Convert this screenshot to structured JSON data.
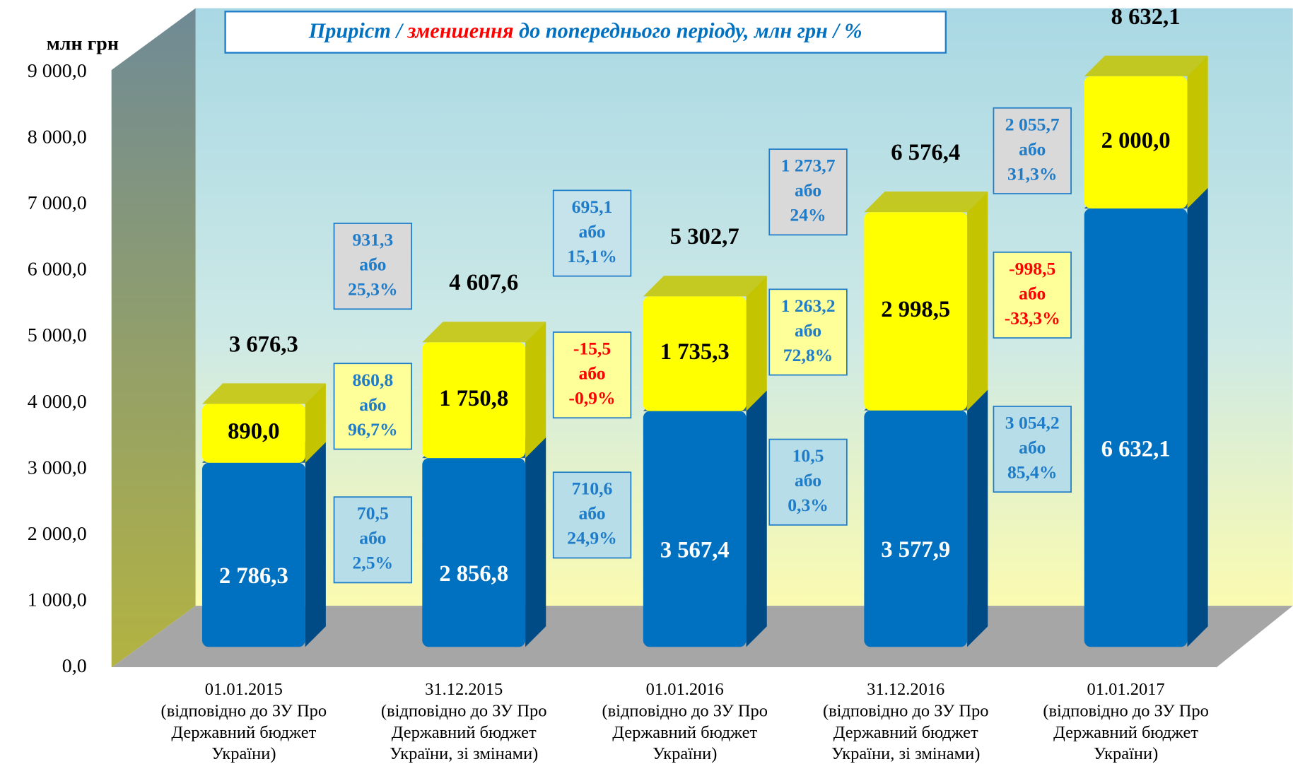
{
  "chart_data": {
    "type": "bar3d_stacked",
    "title_parts": [
      {
        "text": "Приріст / ",
        "color": "#0070c0"
      },
      {
        "text": "зменшення",
        "color": "#ff0000"
      },
      {
        "text": " до попереднього періоду, млн грн / %",
        "color": "#0070c0"
      }
    ],
    "y_axis_label": "млн грн",
    "categories": [
      "01.01.2015\n(відповідно до ЗУ Про\nДержавний бюджет\nУкраїни)",
      "31.12.2015\n(відповідно до ЗУ Про\nДержавний бюджет\nУкраїни, зі змінами)",
      "01.01.2016\n(відповідно до ЗУ Про\nДержавний бюджет\nУкраїни)",
      "31.12.2016\n(відповідно до ЗУ Про\nДержавний бюджет\nУкраїни, зі змінами)",
      "01.01.2017\n(відповідно до ЗУ Про\nДержавний бюджет\nУкраїни)"
    ],
    "series": [
      {
        "color": "#0070c0",
        "side_color": "#004a86",
        "label_color": "#ffffff",
        "values": [
          2786.3,
          2856.8,
          3567.4,
          3577.9,
          6632.1
        ],
        "value_labels": [
          "2 786,3",
          "2 856,8",
          "3 567,4",
          "3 577,9",
          "6 632,1"
        ]
      },
      {
        "color": "#ffff00",
        "side_color": "#c4c400",
        "label_color": "#000000",
        "values": [
          890.0,
          1750.8,
          1735.3,
          2998.5,
          2000.0
        ],
        "value_labels": [
          "890,0",
          "1 750,8",
          "1 735,3",
          "2 998,5",
          "2 000,0"
        ]
      }
    ],
    "totals": {
      "values": [
        3676.3,
        4607.6,
        5302.7,
        6576.4,
        8632.1
      ],
      "value_labels": [
        "3 676,3",
        "4 607,6",
        "5 302,7",
        "6 576,4",
        "8 632,1"
      ]
    },
    "changes": [
      {
        "total": {
          "lines": [
            "931,3",
            "або",
            "25,3%"
          ],
          "color": "#1f7cc8",
          "bg": "#d9d9d9"
        },
        "top": {
          "lines": [
            "860,8",
            "або",
            "96,7%"
          ],
          "color": "#1f7cc8",
          "bg": "#ffff99"
        },
        "bottom": {
          "lines": [
            "70,5",
            "або",
            "2,5%"
          ],
          "color": "#1f7cc8",
          "bg": "#b7dde8"
        }
      },
      {
        "total": {
          "lines": [
            "695,1",
            "або",
            "15,1%"
          ],
          "color": "#1f7cc8",
          "bg": "#c6e3ec"
        },
        "top": {
          "lines": [
            "-15,5",
            "або",
            "-0,9%"
          ],
          "color": "#ff0000",
          "bg": "#ffff99"
        },
        "bottom": {
          "lines": [
            "710,6",
            "або",
            "24,9%"
          ],
          "color": "#1f7cc8",
          "bg": "#b7dde8"
        }
      },
      {
        "total": {
          "lines": [
            "1 273,7",
            "або",
            "24%"
          ],
          "color": "#1f7cc8",
          "bg": "#d9d9d9"
        },
        "top": {
          "lines": [
            "1 263,2",
            "або",
            "72,8%"
          ],
          "color": "#1f7cc8",
          "bg": "#ffff99"
        },
        "bottom": {
          "lines": [
            "10,5",
            "або",
            "0,3%"
          ],
          "color": "#1f7cc8",
          "bg": "#b7dde8"
        }
      },
      {
        "total": {
          "lines": [
            "2 055,7",
            "або",
            "31,3%"
          ],
          "color": "#1f7cc8",
          "bg": "#d9d9d9"
        },
        "top": {
          "lines": [
            "-998,5",
            "або",
            "-33,3%"
          ],
          "color": "#ff0000",
          "bg": "#ffff99"
        },
        "bottom": {
          "lines": [
            "3 054,2",
            "або",
            "85,4%"
          ],
          "color": "#1f7cc8",
          "bg": "#b7dde8"
        }
      }
    ],
    "ylim": [
      0,
      9000
    ],
    "yticks": [
      {
        "value": 0,
        "label": "0,0"
      },
      {
        "value": 1000,
        "label": "1 000,0"
      },
      {
        "value": 2000,
        "label": "2 000,0"
      },
      {
        "value": 3000,
        "label": "3 000,0"
      },
      {
        "value": 4000,
        "label": "4 000,0"
      },
      {
        "value": 5000,
        "label": "5 000,0"
      },
      {
        "value": 6000,
        "label": "6 000,0"
      },
      {
        "value": 7000,
        "label": "7 000,0"
      },
      {
        "value": 8000,
        "label": "8 000,0"
      },
      {
        "value": 9000,
        "label": "9 000,0"
      }
    ]
  }
}
